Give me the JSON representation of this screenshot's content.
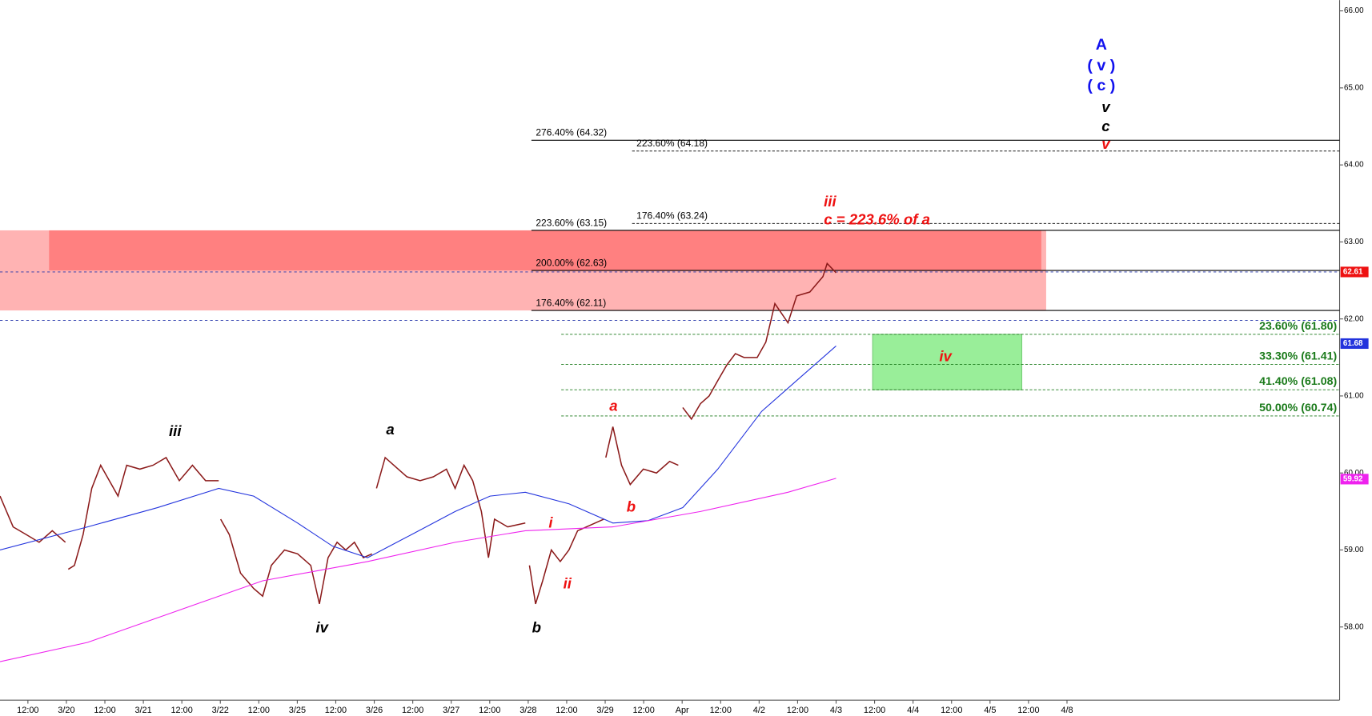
{
  "chart_data": {
    "type": "line",
    "xlim": [
      -8.7,
      409
    ],
    "ylim": [
      57.05,
      66.14
    ],
    "xticks": [
      {
        "value": 0,
        "label": "12:00"
      },
      {
        "value": 12,
        "label": "3/20"
      },
      {
        "value": 24,
        "label": "12:00"
      },
      {
        "value": 36,
        "label": "3/21"
      },
      {
        "value": 48,
        "label": "12:00"
      },
      {
        "value": 60,
        "label": "3/22"
      },
      {
        "value": 72,
        "label": "12:00"
      },
      {
        "value": 84,
        "label": "3/25"
      },
      {
        "value": 96,
        "label": "12:00"
      },
      {
        "value": 108,
        "label": "3/26"
      },
      {
        "value": 120,
        "label": "12:00"
      },
      {
        "value": 132,
        "label": "3/27"
      },
      {
        "value": 144,
        "label": "12:00"
      },
      {
        "value": 156,
        "label": "3/28"
      },
      {
        "value": 168,
        "label": "12:00"
      },
      {
        "value": 180,
        "label": "3/29"
      },
      {
        "value": 192,
        "label": "12:00"
      },
      {
        "value": 204,
        "label": "Apr"
      },
      {
        "value": 216,
        "label": "12:00"
      },
      {
        "value": 228,
        "label": "4/2"
      },
      {
        "value": 240,
        "label": "12:00"
      },
      {
        "value": 252,
        "label": "4/3"
      },
      {
        "value": 264,
        "label": "12:00"
      },
      {
        "value": 276,
        "label": "4/4"
      },
      {
        "value": 288,
        "label": "12:00"
      },
      {
        "value": 300,
        "label": "4/5"
      },
      {
        "value": 312,
        "label": "12:00"
      },
      {
        "value": 324,
        "label": "4/8"
      }
    ],
    "yticks": [
      {
        "value": 58,
        "label": "58.00"
      },
      {
        "value": 59,
        "label": "59.00"
      },
      {
        "value": 60,
        "label": "60.00"
      },
      {
        "value": 61,
        "label": "61.00"
      },
      {
        "value": 62,
        "label": "62.00"
      },
      {
        "value": 63,
        "label": "63.00"
      },
      {
        "value": 64,
        "label": "64.00"
      },
      {
        "value": 65,
        "label": "65.00"
      },
      {
        "value": 66,
        "label": "66.00"
      }
    ],
    "series": [
      {
        "color": "#8b1a1a",
        "x": [
          -8.7,
          -4.6,
          -0.5,
          3.5,
          7.6,
          11.7,
          null,
          12.6,
          14.5,
          17.2,
          19.9,
          22.7,
          25.4,
          28.1,
          30.8,
          34.9,
          39.0,
          43.1,
          47.2,
          51.3,
          55.4,
          59.5,
          null,
          60.1,
          62.8,
          66.3,
          70.4,
          73.2,
          75.9,
          80.0,
          84.1,
          88.2,
          90.9,
          93.6,
          96.4,
          99.1,
          101.8,
          104.6,
          107.3,
          null,
          108.7,
          111.4,
          114.1,
          118.2,
          122.3,
          126.4,
          130.5,
          133.2,
          136.0,
          138.7,
          141.4,
          143.6,
          145.5,
          149.6,
          155.1,
          null,
          156.4,
          158.3,
          160.5,
          163.2,
          166.0,
          168.7,
          171.4,
          174.2,
          179.6,
          null,
          180.2,
          182.4,
          185.1,
          187.8,
          191.9,
          196.0,
          200.1,
          202.8,
          null,
          204.2,
          206.9,
          209.7,
          212.4,
          215.1,
          217.9,
          220.6,
          223.3,
          227.4,
          230.1,
          232.9,
          237.0,
          239.7,
          243.8,
          247.9,
          249.2,
          252.0
        ],
        "values": [
          59.7,
          59.3,
          59.2,
          59.1,
          59.25,
          59.1,
          null,
          58.75,
          58.8,
          59.2,
          59.8,
          60.1,
          59.9,
          59.7,
          60.1,
          60.05,
          60.1,
          60.2,
          59.9,
          60.1,
          59.9,
          59.9,
          null,
          59.4,
          59.2,
          58.7,
          58.5,
          58.4,
          58.8,
          59.0,
          58.95,
          58.8,
          58.3,
          58.9,
          59.1,
          59.0,
          59.1,
          58.9,
          58.95,
          null,
          59.8,
          60.2,
          60.1,
          59.95,
          59.9,
          59.95,
          60.05,
          59.8,
          60.1,
          59.9,
          59.5,
          58.9,
          59.4,
          59.3,
          59.35,
          null,
          58.8,
          58.3,
          58.6,
          59.0,
          58.85,
          59.0,
          59.25,
          59.3,
          59.4,
          null,
          60.2,
          60.6,
          60.1,
          59.85,
          60.05,
          60.0,
          60.15,
          60.1,
          null,
          60.85,
          60.7,
          60.9,
          61.0,
          61.2,
          61.4,
          61.55,
          61.5,
          61.5,
          61.7,
          62.2,
          61.95,
          62.3,
          62.35,
          62.55,
          62.72,
          62.6
        ]
      },
      {
        "color": "#2233dd",
        "x": [
          -8.7,
          18.6,
          40.4,
          59.5,
          70.4,
          84.1,
          95.0,
          105.9,
          119.6,
          133.2,
          144.1,
          155.1,
          168.7,
          182.4,
          193.3,
          204.2,
          215.1,
          228.8,
          239.7,
          252.0
        ],
        "values": [
          59.0,
          59.3,
          59.55,
          59.8,
          59.7,
          59.35,
          59.05,
          58.9,
          59.2,
          59.5,
          59.7,
          59.75,
          59.6,
          59.35,
          59.38,
          59.55,
          60.05,
          60.8,
          61.2,
          61.65
        ]
      },
      {
        "color": "#ee22ee",
        "x": [
          -8.7,
          18.6,
          45.9,
          73.2,
          105.9,
          133.2,
          155.1,
          182.4,
          209.7,
          237.0,
          252.0
        ],
        "values": [
          57.55,
          57.8,
          58.2,
          58.6,
          58.85,
          59.1,
          59.25,
          59.3,
          59.5,
          59.75,
          59.93
        ]
      }
    ],
    "zones": [
      {
        "x": [
          -8.7,
          317.5
        ],
        "y": [
          62.11,
          63.15
        ],
        "color": "#ffb3b3"
      },
      {
        "x": [
          6.6,
          316.0
        ],
        "y": [
          62.63,
          63.15
        ],
        "color": "#ff8080"
      },
      {
        "x": [
          263.4,
          309.9
        ],
        "y": [
          61.08,
          61.8
        ],
        "color": "#99ee99"
      }
    ],
    "fib_levels": [
      {
        "label": "276.40% (64.32)",
        "value": 64.32,
        "x0": 157,
        "style": "solid",
        "color": "#000000"
      },
      {
        "label": "223.60% (64.18)",
        "value": 64.18,
        "x0": 188.4,
        "style": "dashed",
        "color": "#000000"
      },
      {
        "label": "176.40% (63.24)",
        "value": 63.24,
        "x0": 188.4,
        "style": "dashed",
        "color": "#000000"
      },
      {
        "label": "223.60% (63.15)",
        "value": 63.15,
        "x0": 157,
        "style": "solid",
        "color": "#000000"
      },
      {
        "label": "200.00% (62.63)",
        "value": 62.63,
        "x0": 157,
        "style": "solid",
        "color": "#000000"
      },
      {
        "label": "176.40% (62.11)",
        "value": 62.11,
        "x0": 157,
        "style": "solid",
        "color": "#000000"
      },
      {
        "label": "23.60% (61.80)",
        "value": 61.8,
        "x0": 166.3,
        "style": "dashed",
        "color": "#1a7a1a"
      },
      {
        "label": "33.30% (61.41)",
        "value": 61.41,
        "x0": 166.3,
        "style": "dashed",
        "color": "#1a7a1a"
      },
      {
        "label": "41.40% (61.08)",
        "value": 61.08,
        "x0": 166.3,
        "style": "dashed",
        "color": "#1a7a1a"
      },
      {
        "label": "50.00% (60.74)",
        "value": 60.74,
        "x0": 166.3,
        "style": "dashed",
        "color": "#1a7a1a"
      }
    ],
    "dashed_levels": [
      62.61,
      61.98
    ],
    "price_tags": [
      {
        "value": 62.61,
        "color": "#ee1111"
      },
      {
        "value": 61.68,
        "color": "#2233dd"
      },
      {
        "value": 59.92,
        "color": "#ee22ee"
      }
    ],
    "annotations": [
      {
        "text": "iii",
        "x": 45.9,
        "y": 60.53,
        "color": "#000000"
      },
      {
        "text": "a",
        "x": 113.0,
        "y": 60.55,
        "color": "#000000"
      },
      {
        "text": "iv",
        "x": 91.7,
        "y": 57.98,
        "color": "#000000"
      },
      {
        "text": "b",
        "x": 158.6,
        "y": 57.98,
        "color": "#000000"
      },
      {
        "text": "i",
        "x": 163.0,
        "y": 59.34,
        "color": "#ee1111"
      },
      {
        "text": "ii",
        "x": 168.2,
        "y": 58.55,
        "color": "#ee1111"
      },
      {
        "text": "a",
        "x": 182.6,
        "y": 60.86,
        "color": "#ee1111"
      },
      {
        "text": "b",
        "x": 188.1,
        "y": 59.55,
        "color": "#ee1111"
      },
      {
        "text": "iii",
        "x": 250.1,
        "y": 63.51,
        "color": "#ee1111"
      },
      {
        "text": "c = 223.6% of a",
        "x": 248.2,
        "y": 63.28,
        "color": "#ee1111",
        "anchor": "start"
      },
      {
        "text": "iv",
        "x": 286.1,
        "y": 61.5,
        "color": "#ee1111"
      },
      {
        "text": "A",
        "x": 334.7,
        "y": 65.55,
        "color": "#1111ee"
      },
      {
        "text": "( v )",
        "x": 334.7,
        "y": 65.28,
        "color": "#1111ee"
      },
      {
        "text": "( c )",
        "x": 334.7,
        "y": 65.02,
        "color": "#1111ee"
      },
      {
        "text": "v",
        "x": 336.1,
        "y": 64.74,
        "color": "#000000"
      },
      {
        "text": "c",
        "x": 336.1,
        "y": 64.49,
        "color": "#000000"
      },
      {
        "text": "v",
        "x": 336.1,
        "y": 64.26,
        "color": "#ee1111"
      }
    ]
  }
}
